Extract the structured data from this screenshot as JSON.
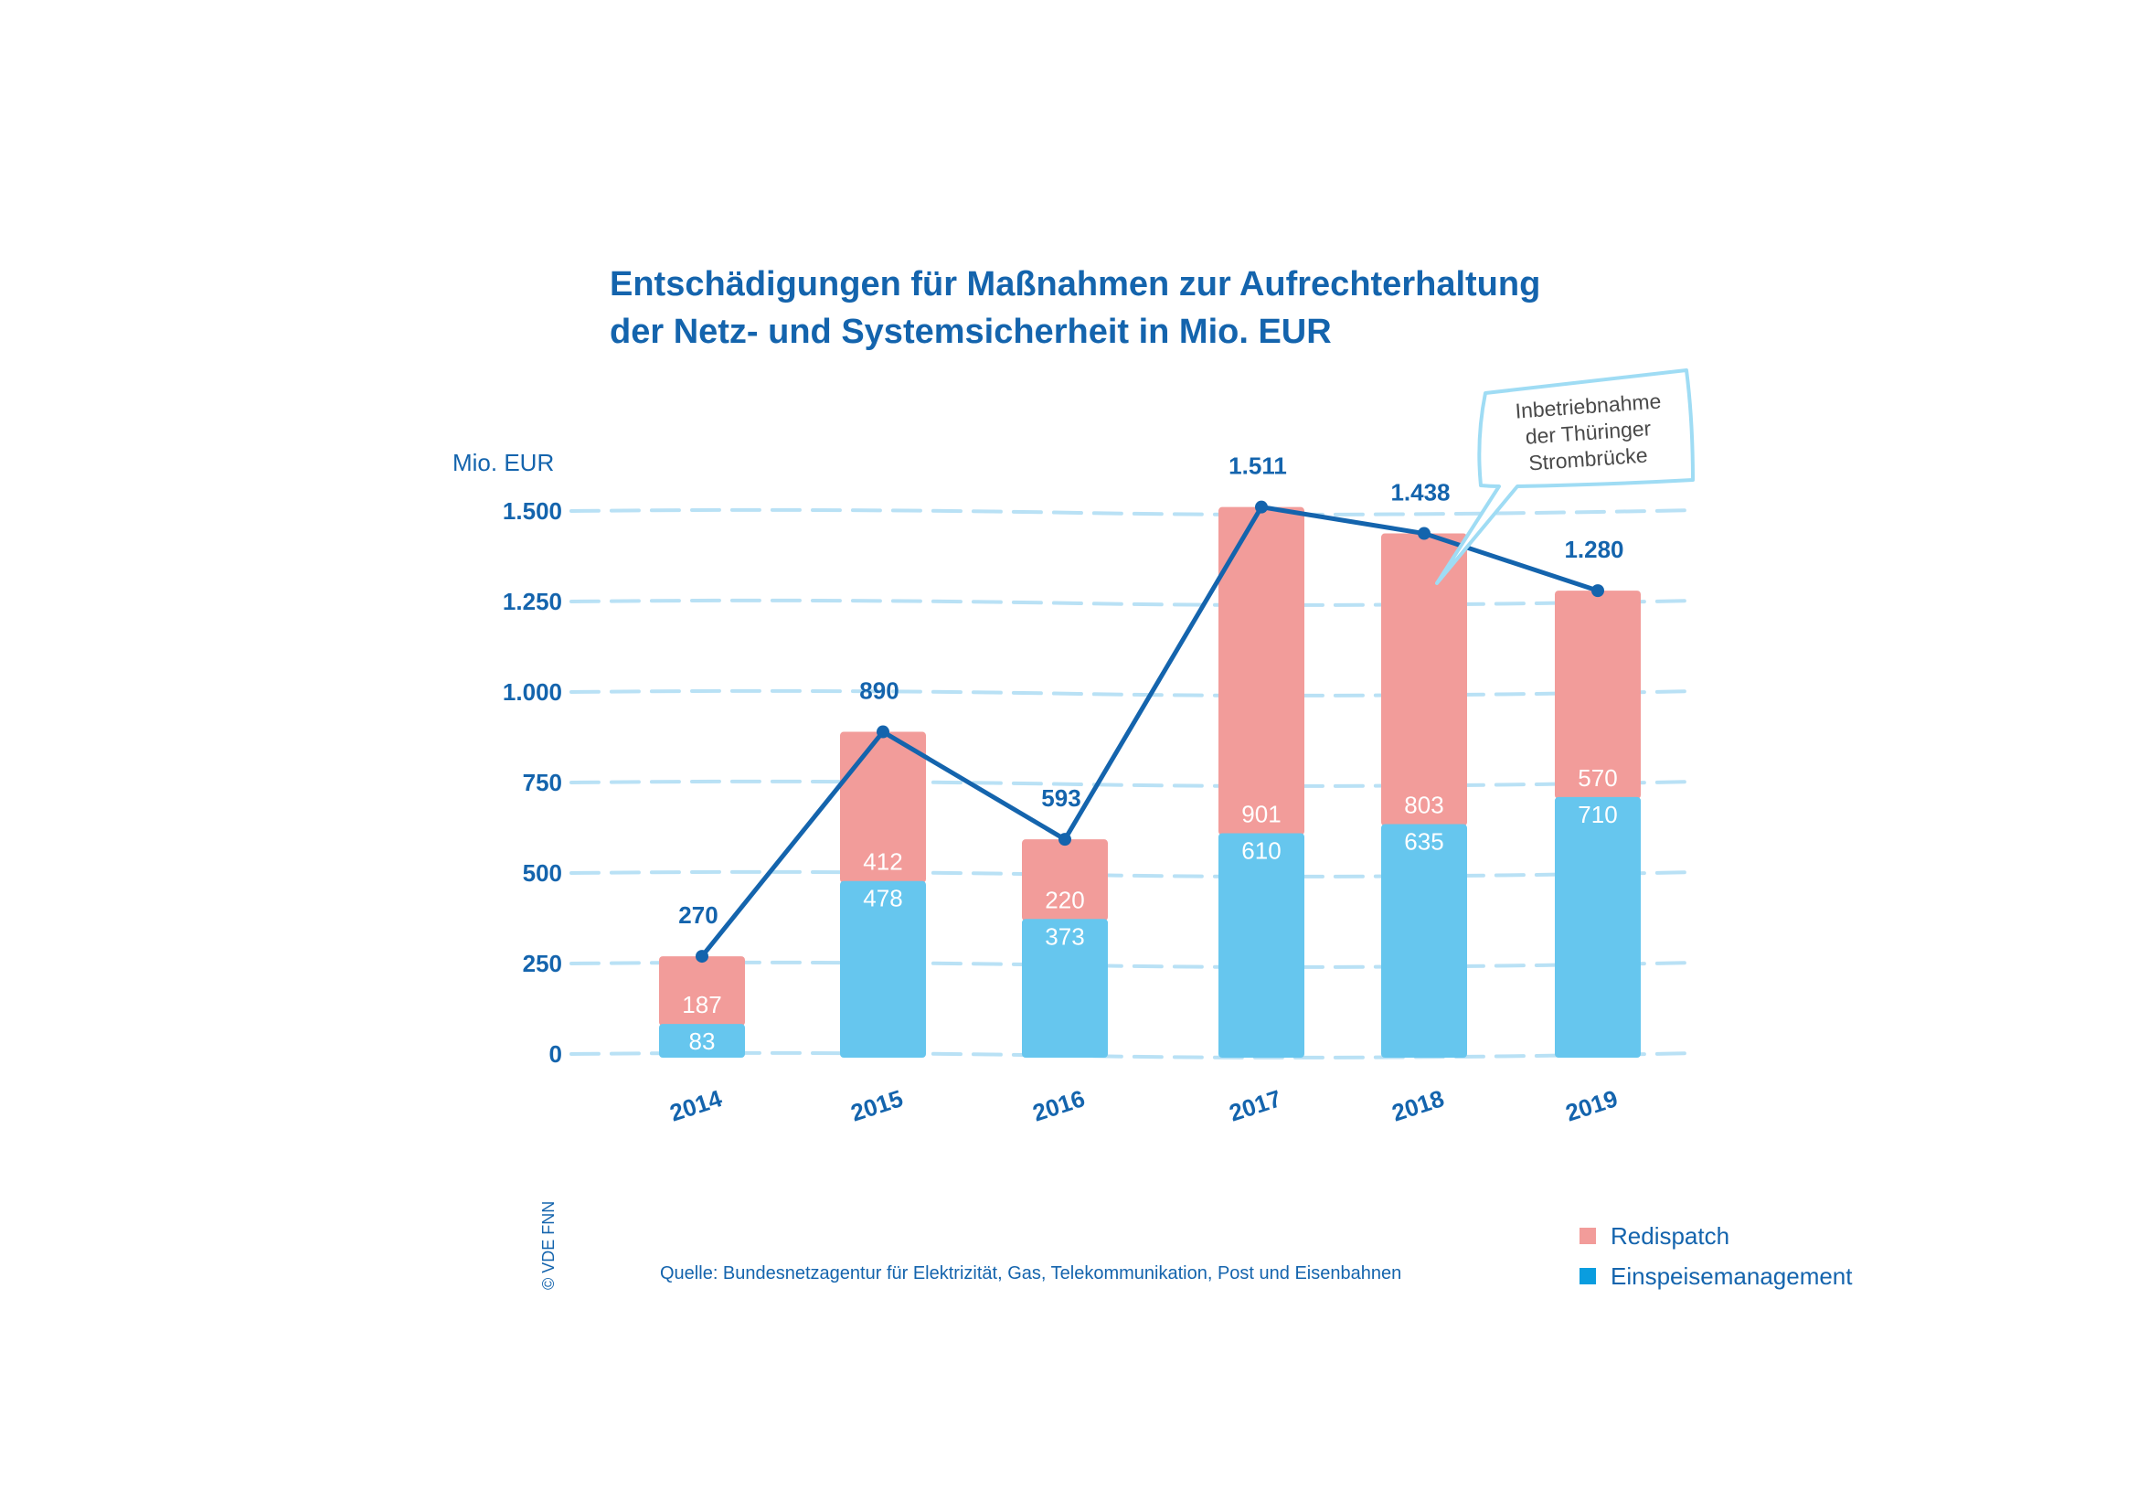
{
  "title_line1": "Entschädigungen für Maßnahmen zur Aufrechterhaltung",
  "title_line2": "der Netz- und Systemsicherheit in Mio. EUR",
  "copyright": "© VDE FNN",
  "source": "Quelle: Bundesnetzagentur für Elektrizität, Gas, Telekommunikation, Post und Eisenbahnen",
  "colors": {
    "redispatch": "#f29c9a",
    "einspeise": "#66c6ee",
    "line": "#1464ad",
    "grid": "#b9e1f5",
    "legend_einspeise": "#0a9ddf"
  },
  "legend": [
    {
      "label": "Redispatch",
      "color": "#f29c9a"
    },
    {
      "label": "Einspeisemanagement",
      "color": "#0a9ddf"
    }
  ],
  "chart_data": {
    "type": "bar",
    "stacked": true,
    "ylabel": "Mio. EUR",
    "ylim": [
      0,
      1500
    ],
    "yticks": [
      0,
      250,
      500,
      750,
      1000,
      1250,
      1500
    ],
    "ytick_labels": [
      "0",
      "250",
      "500",
      "750",
      "1.000",
      "1.250",
      "1.500"
    ],
    "categories": [
      "2014",
      "2015",
      "2016",
      "2017",
      "2018",
      "2019"
    ],
    "series": [
      {
        "name": "Einspeisemanagement",
        "values": [
          83,
          478,
          373,
          610,
          635,
          710
        ],
        "labels": [
          "83",
          "478",
          "373",
          "610",
          "635",
          "710"
        ]
      },
      {
        "name": "Redispatch",
        "values": [
          187,
          412,
          220,
          901,
          803,
          570
        ],
        "labels": [
          "187",
          "412",
          "220",
          "901",
          "803",
          "570"
        ]
      }
    ],
    "total_line": {
      "values": [
        270,
        890,
        593,
        1511,
        1438,
        1280
      ],
      "labels": [
        "270",
        "890",
        "593",
        "1.511",
        "1.438",
        "1.280"
      ]
    },
    "annotation": {
      "text_lines": [
        "Inbetriebnahme",
        "der Thüringer",
        "Strombrücke"
      ],
      "points_to": "2018"
    },
    "grid": true,
    "legend_position": "bottom-right"
  }
}
